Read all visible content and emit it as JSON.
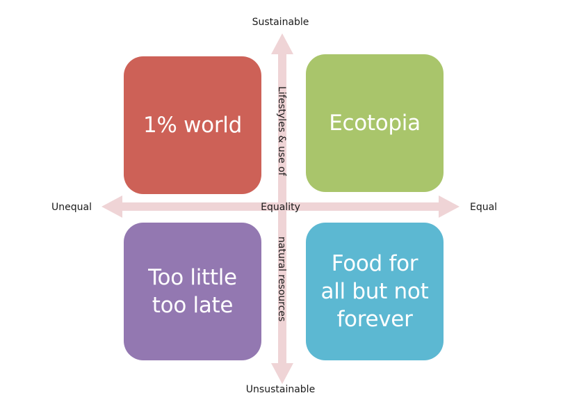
{
  "axes": {
    "top": "Sustainable",
    "bottom": "Unsustainable",
    "left": "Unequal",
    "right": "Equal",
    "center": "Equality",
    "vertical_upper": "Lifestyles & use of",
    "vertical_lower": "natural resources",
    "arrow_color": "#efd4d6"
  },
  "quadrants": {
    "top_left": {
      "label": "1% world",
      "color": "#cd6157"
    },
    "top_right": {
      "label": "Ecotopia",
      "color": "#a9c56b"
    },
    "bottom_left": {
      "label": "Too little\ntoo late",
      "color": "#9378b1"
    },
    "bottom_right": {
      "label": "Food for\nall but not\nforever",
      "color": "#5cb8d2"
    }
  }
}
